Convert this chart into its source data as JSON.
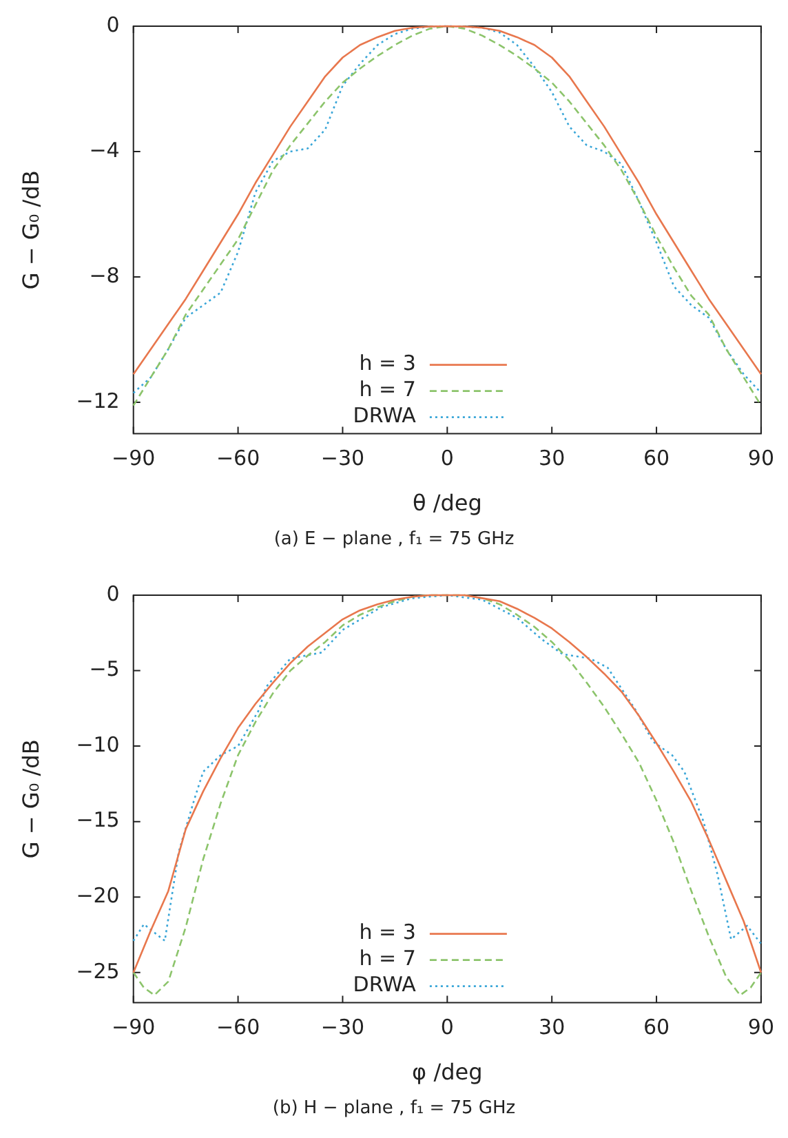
{
  "chart_data": [
    {
      "type": "line",
      "xlabel": "θ /deg",
      "ylabel": "G − G₀ /dB",
      "annotations": [
        "(a) E − plane , f₁ = 75 GHz"
      ],
      "xlim": [
        -90,
        90
      ],
      "xticks": [
        -90,
        -60,
        -30,
        0,
        30,
        60,
        90
      ],
      "ylim": [
        -13,
        0
      ],
      "yticks": [
        0,
        -4,
        -8,
        -12
      ],
      "grid": false,
      "legend": "bottom right",
      "marker": "none",
      "series": [
        {
          "name": "h = 3",
          "color": "#e8774d",
          "line_style": "solid",
          "x": [
            -90,
            -85,
            -80,
            -75,
            -70,
            -65,
            -60,
            -55,
            -50,
            -45,
            -40,
            -35,
            -30,
            -25,
            -20,
            -15,
            -10,
            -5,
            0,
            5,
            10,
            15,
            20,
            25,
            30,
            35,
            40,
            45,
            50,
            55,
            60,
            65,
            70,
            75,
            80,
            85,
            90
          ],
          "values": [
            -11.1,
            -10.3,
            -9.5,
            -8.7,
            -7.8,
            -6.9,
            -6.0,
            -5.0,
            -4.1,
            -3.2,
            -2.4,
            -1.6,
            -1.0,
            -0.6,
            -0.35,
            -0.15,
            -0.05,
            -0.01,
            0,
            -0.01,
            -0.05,
            -0.15,
            -0.35,
            -0.6,
            -1.0,
            -1.6,
            -2.4,
            -3.2,
            -4.1,
            -5.0,
            -6.0,
            -6.9,
            -7.8,
            -8.7,
            -9.5,
            -10.3,
            -11.1
          ]
        },
        {
          "name": "h = 7",
          "color": "#8cc46b",
          "line_style": "dashed",
          "x": [
            -90,
            -85,
            -80,
            -75,
            -70,
            -65,
            -60,
            -55,
            -50,
            -45,
            -40,
            -35,
            -30,
            -25,
            -20,
            -15,
            -10,
            -5,
            0,
            5,
            10,
            15,
            20,
            25,
            30,
            35,
            40,
            45,
            50,
            55,
            60,
            65,
            70,
            75,
            80,
            85,
            90
          ],
          "values": [
            -12.1,
            -11.2,
            -10.3,
            -9.2,
            -8.4,
            -7.6,
            -6.8,
            -5.7,
            -4.6,
            -3.8,
            -3.1,
            -2.4,
            -1.8,
            -1.35,
            -0.95,
            -0.6,
            -0.3,
            -0.08,
            0,
            -0.08,
            -0.3,
            -0.6,
            -0.95,
            -1.35,
            -1.8,
            -2.4,
            -3.1,
            -3.8,
            -4.6,
            -5.6,
            -6.7,
            -7.7,
            -8.6,
            -9.2,
            -10.3,
            -11.2,
            -12.1
          ]
        },
        {
          "name": "DRWA",
          "color": "#3aa6d8",
          "line_style": "dotted",
          "x": [
            -90,
            -85,
            -80,
            -75,
            -70,
            -65,
            -60,
            -55,
            -50,
            -45,
            -40,
            -35,
            -30,
            -25,
            -20,
            -15,
            -10,
            -5,
            0,
            5,
            10,
            15,
            20,
            25,
            30,
            35,
            40,
            45,
            50,
            55,
            60,
            65,
            70,
            75,
            80,
            85,
            90
          ],
          "values": [
            -11.7,
            -11.2,
            -10.3,
            -9.3,
            -8.9,
            -8.5,
            -7.2,
            -5.3,
            -4.3,
            -4.0,
            -3.9,
            -3.3,
            -1.9,
            -1.2,
            -0.6,
            -0.25,
            -0.08,
            -0.01,
            0,
            -0.01,
            -0.05,
            -0.2,
            -0.6,
            -1.3,
            -2.1,
            -3.2,
            -3.8,
            -4.0,
            -4.4,
            -5.6,
            -6.9,
            -8.3,
            -8.9,
            -9.3,
            -10.3,
            -11.1,
            -11.7
          ]
        }
      ]
    },
    {
      "type": "line",
      "xlabel": "φ /deg",
      "ylabel": "G − G₀ /dB",
      "annotations": [
        "(b) H − plane , f₁ = 75 GHz"
      ],
      "xlim": [
        -90,
        90
      ],
      "xticks": [
        -90,
        -60,
        -30,
        0,
        30,
        60,
        90
      ],
      "ylim": [
        -27,
        0
      ],
      "yticks": [
        0,
        -5,
        -10,
        -15,
        -20,
        -25
      ],
      "grid": false,
      "legend": "bottom right",
      "marker": "none",
      "series": [
        {
          "name": "h = 3",
          "color": "#e8774d",
          "line_style": "solid",
          "x": [
            -90,
            -85,
            -80,
            -75,
            -70,
            -65,
            -60,
            -55,
            -50,
            -45,
            -40,
            -35,
            -30,
            -25,
            -20,
            -15,
            -10,
            -5,
            0,
            5,
            10,
            15,
            20,
            25,
            30,
            35,
            40,
            45,
            50,
            55,
            60,
            65,
            70,
            75,
            80,
            85,
            90
          ],
          "values": [
            -25,
            -22.2,
            -19.6,
            -15.5,
            -13.0,
            -10.8,
            -8.8,
            -7.2,
            -5.8,
            -4.5,
            -3.4,
            -2.5,
            -1.6,
            -1.0,
            -0.6,
            -0.3,
            -0.1,
            0,
            0,
            0,
            -0.2,
            -0.4,
            -0.9,
            -1.5,
            -2.2,
            -3.1,
            -4.1,
            -5.2,
            -6.4,
            -8.0,
            -9.8,
            -11.7,
            -13.7,
            -16.2,
            -18.9,
            -21.6,
            -25
          ]
        },
        {
          "name": "h = 7",
          "color": "#8cc46b",
          "line_style": "dashed",
          "x": [
            -90,
            -87,
            -84,
            -80,
            -75,
            -70,
            -65,
            -60,
            -55,
            -50,
            -45,
            -40,
            -35,
            -30,
            -25,
            -20,
            -15,
            -10,
            -5,
            0,
            5,
            10,
            15,
            20,
            25,
            30,
            35,
            40,
            45,
            50,
            55,
            60,
            65,
            70,
            75,
            80,
            84,
            87,
            90
          ],
          "values": [
            -25.0,
            -26.0,
            -26.5,
            -25.6,
            -22.0,
            -17.5,
            -13.8,
            -10.6,
            -8.4,
            -6.5,
            -5.0,
            -4.0,
            -3.1,
            -2.0,
            -1.3,
            -0.8,
            -0.4,
            -0.1,
            0,
            0,
            0,
            -0.2,
            -0.6,
            -1.3,
            -2.1,
            -3.1,
            -4.3,
            -5.8,
            -7.4,
            -9.2,
            -11.1,
            -13.6,
            -16.4,
            -19.6,
            -22.6,
            -25.3,
            -26.5,
            -26.0,
            -25.0
          ]
        },
        {
          "name": "DRWA",
          "color": "#3aa6d8",
          "line_style": "dotted",
          "x": [
            -90,
            -87,
            -81,
            -77,
            -72.5,
            -70,
            -65,
            -60,
            -54,
            -52,
            -45,
            -36,
            -30,
            -19,
            -10,
            0,
            10,
            20,
            27,
            33,
            41,
            46,
            54,
            59,
            64.5,
            68,
            73.5,
            77.5,
            81.4,
            86,
            90
          ],
          "values": [
            -22.9,
            -21.8,
            -22.9,
            -17.0,
            -13.5,
            -11.7,
            -10.6,
            -10.0,
            -7.6,
            -6.1,
            -4.2,
            -3.8,
            -2.3,
            -0.8,
            -0.2,
            0,
            -0.3,
            -1.5,
            -2.9,
            -3.9,
            -4.2,
            -4.8,
            -7.6,
            -9.7,
            -10.6,
            -11.7,
            -15.0,
            -18.5,
            -22.8,
            -21.9,
            -23.1
          ]
        }
      ]
    }
  ]
}
